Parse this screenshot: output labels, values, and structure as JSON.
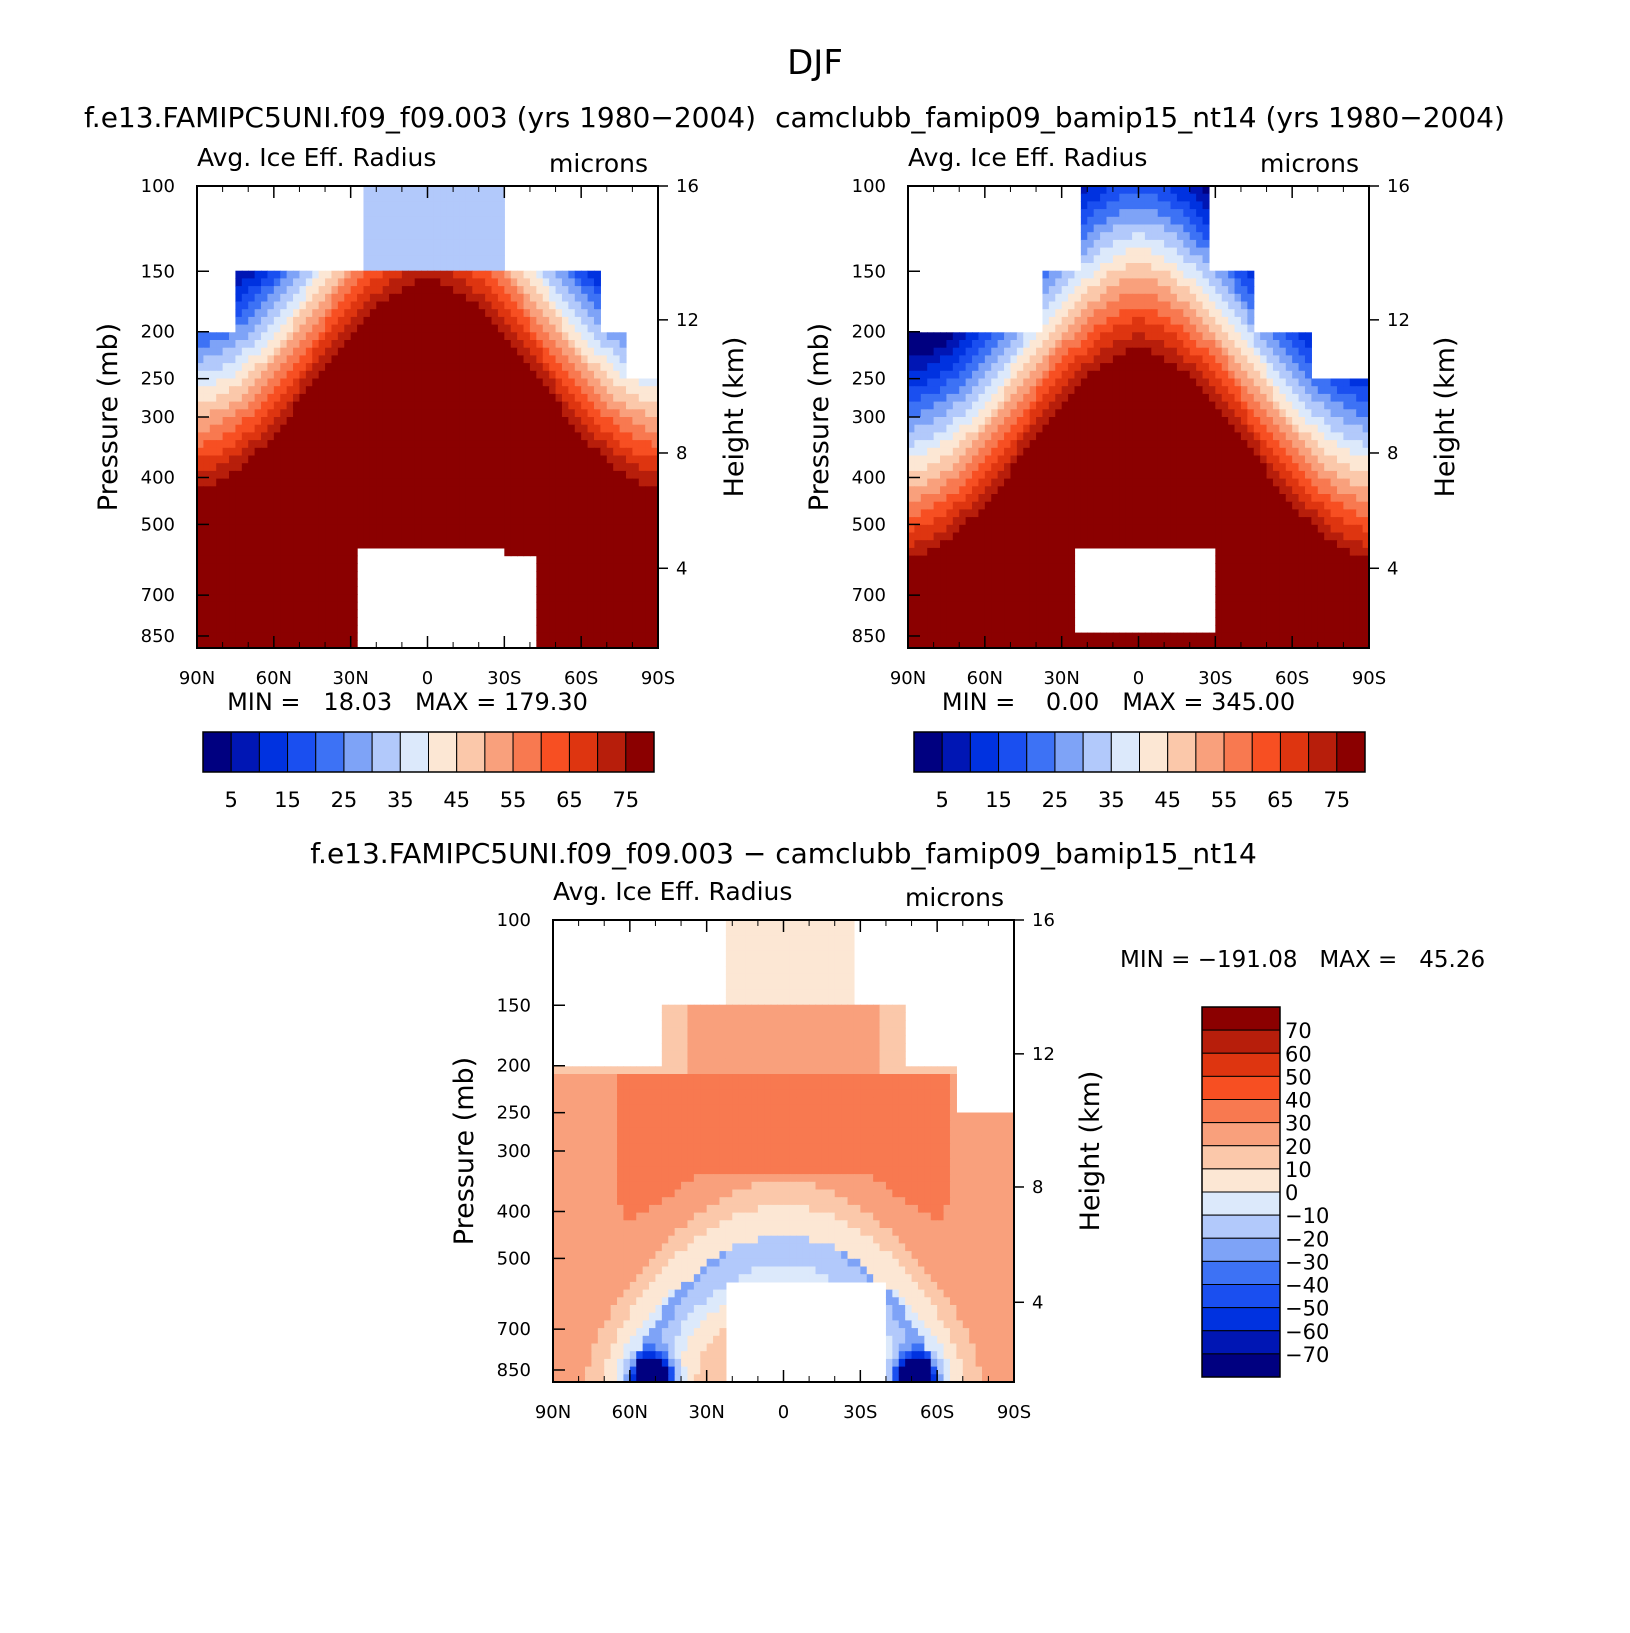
{
  "page_title": "DJF",
  "chart_data": [
    {
      "type": "heatmap",
      "title": "f.e13.FAMIPC5UNI.f09_f09.003 (yrs 1980−2004)",
      "variable": "Avg. Ice Eff. Radius",
      "units": "microns",
      "xlabel": "",
      "ylabel": "Pressure (mb)",
      "right_label": "Height (km)",
      "x_ticks": [
        "90N",
        "60N",
        "30N",
        "0",
        "30S",
        "60S",
        "90S"
      ],
      "y_ticks": [
        100,
        150,
        200,
        250,
        300,
        400,
        500,
        700,
        850
      ],
      "height_ticks": [
        16,
        12,
        8,
        4
      ],
      "stats": "MIN =   18.03   MAX = 179.30",
      "colorbar_levels": [
        5,
        10,
        15,
        20,
        25,
        30,
        35,
        40,
        45,
        50,
        55,
        60,
        65,
        70,
        75
      ],
      "colorbar_labels": [
        "5",
        "15",
        "25",
        "35",
        "45",
        "55",
        "65",
        "75"
      ]
    },
    {
      "type": "heatmap",
      "title": "camclubb_famip09_bamip15_nt14 (yrs 1980−2004)",
      "variable": "Avg. Ice Eff. Radius",
      "units": "microns",
      "xlabel": "",
      "ylabel": "Pressure (mb)",
      "right_label": "Height (km)",
      "x_ticks": [
        "90N",
        "60N",
        "30N",
        "0",
        "30S",
        "60S",
        "90S"
      ],
      "y_ticks": [
        100,
        150,
        200,
        250,
        300,
        400,
        500,
        700,
        850
      ],
      "height_ticks": [
        16,
        12,
        8,
        4
      ],
      "stats": "MIN =    0.00   MAX = 345.00",
      "colorbar_levels": [
        5,
        10,
        15,
        20,
        25,
        30,
        35,
        40,
        45,
        50,
        55,
        60,
        65,
        70,
        75
      ],
      "colorbar_labels": [
        "5",
        "15",
        "25",
        "35",
        "45",
        "55",
        "65",
        "75"
      ]
    },
    {
      "type": "heatmap",
      "title": "f.e13.FAMIPC5UNI.f09_f09.003 − camclubb_famip09_bamip15_nt14",
      "variable": "Avg. Ice Eff. Radius",
      "units": "microns",
      "xlabel": "",
      "ylabel": "Pressure (mb)",
      "right_label": "Height (km)",
      "x_ticks": [
        "90N",
        "60N",
        "30N",
        "0",
        "30S",
        "60S",
        "90S"
      ],
      "y_ticks": [
        100,
        150,
        200,
        250,
        300,
        400,
        500,
        700,
        850
      ],
      "height_ticks": [
        16,
        12,
        8,
        4
      ],
      "stats": "MIN = −191.08   MAX =   45.26",
      "colorbar_levels": [
        70,
        60,
        50,
        40,
        30,
        20,
        10,
        0,
        -10,
        -20,
        -30,
        -40,
        -50,
        -60,
        -70
      ],
      "colorbar_labels": [
        "70",
        "60",
        "50",
        "40",
        "30",
        "20",
        "10",
        "0",
        "−10",
        "−20",
        "−30",
        "−40",
        "−50",
        "−60",
        "−70"
      ]
    }
  ],
  "colors": {
    "palette": [
      "#000080",
      "#0016b4",
      "#0032e0",
      "#1a4ff0",
      "#3d72f5",
      "#7ea3f7",
      "#b2c9fb",
      "#dce9fb",
      "#fce7d4",
      "#fbc8aa",
      "#f9a07c",
      "#f87950",
      "#f74f22",
      "#de3510",
      "#b71e0b",
      "#8b0000"
    ],
    "frame": "#000000"
  }
}
